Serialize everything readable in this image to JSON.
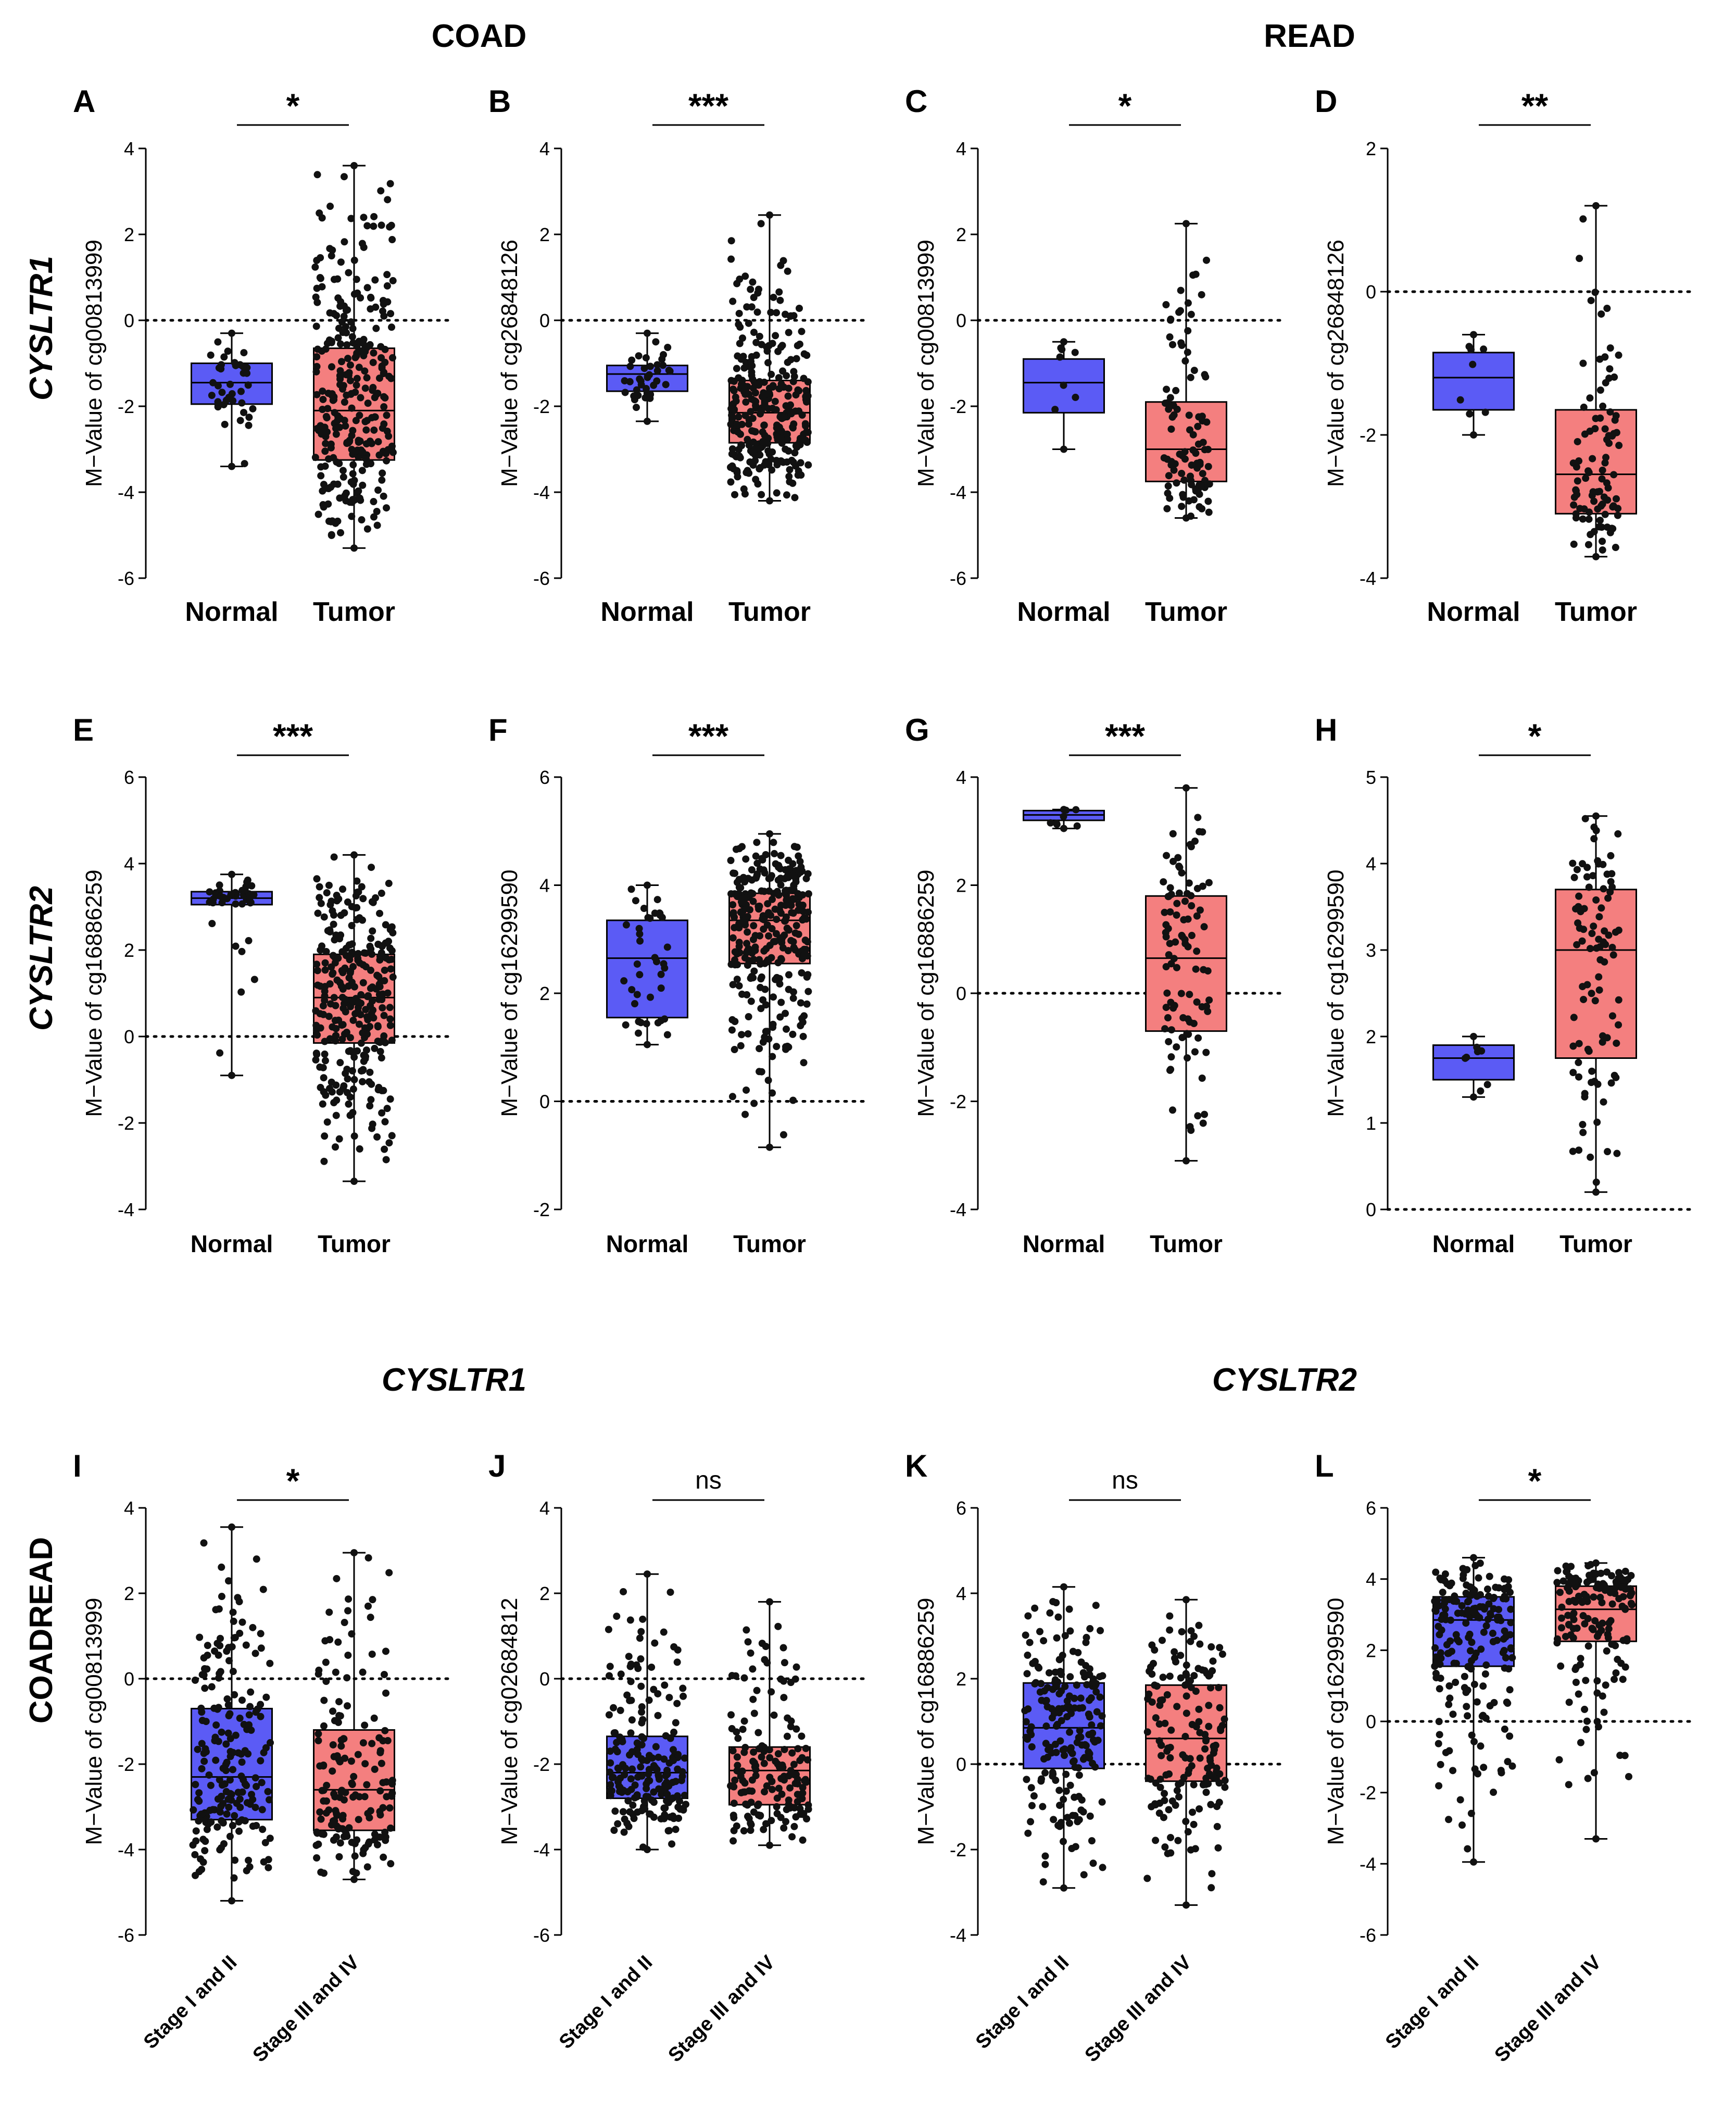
{
  "headers": {
    "coad": "COAD",
    "read": "READ",
    "cysltr1_bottom": "CYSLTR1",
    "cysltr2_bottom": "CYSLTR2"
  },
  "row_labels": {
    "row1": "CYSLTR1",
    "row2": "CYSLTR2",
    "row3": "COADREAD"
  },
  "colors": {
    "group1_fill": "#5b5bf5",
    "group2_fill": "#f47f7f",
    "point": "#111111",
    "axis": "#000000"
  },
  "chart_data": [
    {
      "panel": "A",
      "type": "box",
      "ylabel": "M−Value of cg00813999",
      "categories": [
        "Normal",
        "Tumor"
      ],
      "ylim": [
        -6,
        4
      ],
      "yticks": [
        -6,
        -4,
        -2,
        0,
        2,
        4
      ],
      "refline": 0,
      "significance": "*",
      "boxes": [
        {
          "min": -3.4,
          "q1": -1.95,
          "median": -1.45,
          "q3": -1.0,
          "max": -0.3,
          "n": 38
        },
        {
          "min": -5.3,
          "q1": -3.25,
          "median": -2.1,
          "q3": -0.65,
          "max": 3.6,
          "n": 300
        }
      ]
    },
    {
      "panel": "B",
      "type": "box",
      "ylabel": "M−Value of cg26848126",
      "categories": [
        "Normal",
        "Tumor"
      ],
      "ylim": [
        -6,
        4
      ],
      "yticks": [
        -6,
        -4,
        -2,
        0,
        2,
        4
      ],
      "refline": 0,
      "significance": "***",
      "boxes": [
        {
          "min": -2.35,
          "q1": -1.65,
          "median": -1.25,
          "q3": -1.05,
          "max": -0.3,
          "n": 38
        },
        {
          "min": -4.2,
          "q1": -2.85,
          "median": -2.15,
          "q3": -1.4,
          "max": 2.45,
          "n": 300
        }
      ]
    },
    {
      "panel": "C",
      "type": "box",
      "ylabel": "M−Value of cg00813999",
      "categories": [
        "Normal",
        "Tumor"
      ],
      "ylim": [
        -6,
        4
      ],
      "yticks": [
        -6,
        -4,
        -2,
        0,
        2,
        4
      ],
      "refline": 0,
      "significance": "*",
      "boxes": [
        {
          "min": -3.0,
          "q1": -2.15,
          "median": -1.45,
          "q3": -0.9,
          "max": -0.5,
          "n": 7
        },
        {
          "min": -4.6,
          "q1": -3.75,
          "median": -3.0,
          "q3": -1.9,
          "max": 2.25,
          "n": 95
        }
      ]
    },
    {
      "panel": "D",
      "type": "box",
      "ylabel": "M−Value of cg26848126",
      "categories": [
        "Normal",
        "Tumor"
      ],
      "ylim": [
        -4,
        2
      ],
      "yticks": [
        -4,
        -2,
        0,
        2
      ],
      "refline": 0,
      "significance": "**",
      "boxes": [
        {
          "min": -2.0,
          "q1": -1.65,
          "median": -1.2,
          "q3": -0.85,
          "max": -0.6,
          "n": 7
        },
        {
          "min": -3.7,
          "q1": -3.1,
          "median": -2.55,
          "q3": -1.65,
          "max": 1.2,
          "n": 95
        }
      ]
    },
    {
      "panel": "E",
      "type": "box",
      "ylabel": "M−Value of cg16886259",
      "categories": [
        "Normal",
        "Tumor"
      ],
      "ylim": [
        -4,
        6
      ],
      "yticks": [
        -4,
        -2,
        0,
        2,
        4,
        6
      ],
      "refline": 0,
      "significance": "***",
      "boxes": [
        {
          "min": -0.9,
          "q1": 3.05,
          "median": 3.2,
          "q3": 3.35,
          "max": 3.75,
          "n": 38
        },
        {
          "min": -3.35,
          "q1": -0.15,
          "median": 0.9,
          "q3": 1.9,
          "max": 4.2,
          "n": 300
        }
      ]
    },
    {
      "panel": "F",
      "type": "box",
      "ylabel": "M−Value of cg16299590",
      "categories": [
        "Normal",
        "Tumor"
      ],
      "ylim": [
        -2,
        6
      ],
      "yticks": [
        -2,
        0,
        2,
        4,
        6
      ],
      "refline": 0,
      "significance": "***",
      "boxes": [
        {
          "min": 1.05,
          "q1": 1.55,
          "median": 2.65,
          "q3": 3.35,
          "max": 4.0,
          "n": 38
        },
        {
          "min": -0.85,
          "q1": 2.55,
          "median": 3.35,
          "q3": 3.85,
          "max": 4.95,
          "n": 300
        }
      ]
    },
    {
      "panel": "G",
      "type": "box",
      "ylabel": "M−Value of cg16886259",
      "categories": [
        "Normal",
        "Tumor"
      ],
      "ylim": [
        -4,
        4
      ],
      "yticks": [
        -4,
        -2,
        0,
        2,
        4
      ],
      "refline": 0,
      "significance": "***",
      "boxes": [
        {
          "min": 3.05,
          "q1": 3.2,
          "median": 3.3,
          "q3": 3.38,
          "max": 3.4,
          "n": 7
        },
        {
          "min": -3.1,
          "q1": -0.7,
          "median": 0.65,
          "q3": 1.8,
          "max": 3.8,
          "n": 95
        }
      ]
    },
    {
      "panel": "H",
      "type": "box",
      "ylabel": "M−Value of cg16299590",
      "categories": [
        "Normal",
        "Tumor"
      ],
      "ylim": [
        0,
        5
      ],
      "yticks": [
        0,
        1,
        2,
        3,
        4,
        5
      ],
      "refline": 0,
      "significance": "*",
      "boxes": [
        {
          "min": 1.3,
          "q1": 1.5,
          "median": 1.75,
          "q3": 1.9,
          "max": 2.0,
          "n": 7
        },
        {
          "min": 0.2,
          "q1": 1.75,
          "median": 3.0,
          "q3": 3.7,
          "max": 4.55,
          "n": 95
        }
      ]
    },
    {
      "panel": "I",
      "type": "box",
      "ylabel": "M−Value of cg00813999",
      "categories": [
        "Stage I and II",
        "Stage III and IV"
      ],
      "ylim": [
        -6,
        4
      ],
      "yticks": [
        -6,
        -4,
        -2,
        0,
        2,
        4
      ],
      "refline": 0,
      "significance": "*",
      "boxes": [
        {
          "min": -5.2,
          "q1": -3.3,
          "median": -2.3,
          "q3": -0.7,
          "max": 3.55,
          "n": 200
        },
        {
          "min": -4.7,
          "q1": -3.55,
          "median": -2.6,
          "q3": -1.2,
          "max": 2.95,
          "n": 160
        }
      ]
    },
    {
      "panel": "J",
      "type": "box",
      "ylabel": "M−Value of cg02684812",
      "categories": [
        "Stage I and II",
        "Stage III and IV"
      ],
      "ylim": [
        -6,
        4
      ],
      "yticks": [
        -6,
        -4,
        -2,
        0,
        2,
        4
      ],
      "refline": 0,
      "significance": "ns",
      "boxes": [
        {
          "min": -4.0,
          "q1": -2.8,
          "median": -2.2,
          "q3": -1.35,
          "max": 2.45,
          "n": 200
        },
        {
          "min": -3.9,
          "q1": -2.95,
          "median": -2.15,
          "q3": -1.6,
          "max": 1.8,
          "n": 160
        }
      ]
    },
    {
      "panel": "K",
      "type": "box",
      "ylabel": "M−Value of cg16886259",
      "categories": [
        "Stage I and II",
        "Stage III and IV"
      ],
      "ylim": [
        -4,
        6
      ],
      "yticks": [
        -4,
        -2,
        0,
        2,
        4,
        6
      ],
      "refline": 0,
      "significance": "ns",
      "boxes": [
        {
          "min": -2.9,
          "q1": -0.1,
          "median": 0.85,
          "q3": 1.9,
          "max": 4.15,
          "n": 200
        },
        {
          "min": -3.3,
          "q1": -0.4,
          "median": 0.6,
          "q3": 1.85,
          "max": 3.85,
          "n": 160
        }
      ]
    },
    {
      "panel": "L",
      "type": "box",
      "ylabel": "M−Value of cg16299590",
      "categories": [
        "Stage I and II",
        "Stage III and IV"
      ],
      "ylim": [
        -6,
        6
      ],
      "yticks": [
        -6,
        -4,
        -2,
        0,
        2,
        4,
        6
      ],
      "refline": 0,
      "significance": "*",
      "boxes": [
        {
          "min": -3.95,
          "q1": 1.55,
          "median": 2.85,
          "q3": 3.5,
          "max": 4.6,
          "n": 200
        },
        {
          "min": -3.3,
          "q1": 2.25,
          "median": 3.15,
          "q3": 3.8,
          "max": 4.45,
          "n": 160
        }
      ]
    }
  ]
}
